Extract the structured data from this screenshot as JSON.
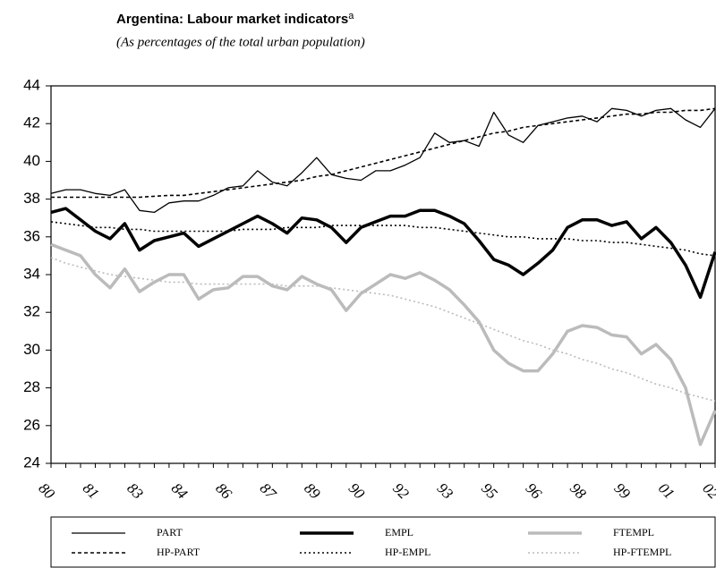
{
  "chart_data": {
    "type": "line",
    "title": "Argentina: Labour market indicators",
    "title_note": "a",
    "subtitle": "(As percentages of the total urban population)",
    "categories": [
      "80",
      null,
      null,
      "81",
      null,
      null,
      "83",
      null,
      null,
      "84",
      null,
      null,
      "86",
      null,
      null,
      "87",
      null,
      null,
      "89",
      null,
      null,
      "90",
      null,
      null,
      "92",
      null,
      null,
      "93",
      null,
      null,
      "95",
      null,
      null,
      "96",
      null,
      null,
      "98",
      null,
      null,
      "99",
      null,
      null,
      "01",
      null,
      null,
      "02"
    ],
    "ylim": [
      24,
      44
    ],
    "yticks": [
      24,
      26,
      28,
      30,
      32,
      34,
      36,
      38,
      40,
      42,
      44
    ],
    "series": [
      {
        "name": "PART",
        "color": "#000000",
        "width": 1.3,
        "dash": "solid",
        "values": [
          38.3,
          38.5,
          38.5,
          38.3,
          38.2,
          38.5,
          37.4,
          37.3,
          37.8,
          37.9,
          37.9,
          38.2,
          38.6,
          38.7,
          39.5,
          38.9,
          38.7,
          39.4,
          40.2,
          39.3,
          39.1,
          39.0,
          39.5,
          39.5,
          39.8,
          40.2,
          41.5,
          41.0,
          41.1,
          40.8,
          42.6,
          41.4,
          41.0,
          41.9,
          42.1,
          42.3,
          42.4,
          42.1,
          42.8,
          42.7,
          42.4,
          42.7,
          42.8,
          42.2,
          41.8,
          42.8
        ]
      },
      {
        "name": "EMPL",
        "color": "#000000",
        "width": 3.5,
        "dash": "solid",
        "values": [
          37.3,
          37.5,
          36.9,
          36.3,
          35.9,
          36.7,
          35.3,
          35.8,
          36.0,
          36.2,
          35.5,
          35.9,
          36.3,
          36.7,
          37.1,
          36.7,
          36.2,
          37.0,
          36.9,
          36.5,
          35.7,
          36.5,
          36.8,
          37.1,
          37.1,
          37.4,
          37.4,
          37.1,
          36.7,
          35.8,
          34.8,
          34.5,
          34.0,
          34.6,
          35.3,
          36.5,
          36.9,
          36.9,
          36.6,
          36.8,
          35.9,
          36.5,
          35.7,
          34.5,
          32.8,
          35.2
        ]
      },
      {
        "name": "FTEMPL",
        "color": "#bbbbbb",
        "width": 3.5,
        "dash": "solid",
        "values": [
          35.6,
          35.3,
          35.0,
          34.0,
          33.3,
          34.3,
          33.1,
          33.6,
          34.0,
          34.0,
          32.7,
          33.2,
          33.3,
          33.9,
          33.9,
          33.4,
          33.2,
          33.9,
          33.5,
          33.2,
          32.1,
          33.0,
          33.5,
          34.0,
          33.8,
          34.1,
          33.7,
          33.2,
          32.4,
          31.5,
          30.0,
          29.3,
          28.9,
          28.9,
          29.8,
          31.0,
          31.3,
          31.2,
          30.8,
          30.7,
          29.8,
          30.3,
          29.5,
          28.0,
          25.0,
          26.8
        ]
      },
      {
        "name": "HP-PART",
        "color": "#000000",
        "width": 1.6,
        "dash": "dashed",
        "values": [
          38.1,
          38.1,
          38.1,
          38.1,
          38.1,
          38.1,
          38.1,
          38.15,
          38.2,
          38.2,
          38.3,
          38.4,
          38.5,
          38.6,
          38.7,
          38.8,
          38.9,
          39.0,
          39.2,
          39.3,
          39.5,
          39.7,
          39.9,
          40.1,
          40.3,
          40.5,
          40.7,
          40.9,
          41.1,
          41.3,
          41.5,
          41.6,
          41.8,
          41.9,
          42.0,
          42.1,
          42.2,
          42.3,
          42.4,
          42.5,
          42.5,
          42.6,
          42.6,
          42.7,
          42.7,
          42.8
        ]
      },
      {
        "name": "HP-EMPL",
        "color": "#000000",
        "width": 1.6,
        "dash": "dotted",
        "values": [
          36.8,
          36.7,
          36.6,
          36.5,
          36.5,
          36.4,
          36.4,
          36.3,
          36.3,
          36.3,
          36.3,
          36.3,
          36.3,
          36.4,
          36.4,
          36.4,
          36.5,
          36.5,
          36.5,
          36.6,
          36.6,
          36.6,
          36.6,
          36.6,
          36.6,
          36.5,
          36.5,
          36.4,
          36.3,
          36.2,
          36.1,
          36.0,
          36.0,
          35.9,
          35.9,
          35.9,
          35.8,
          35.8,
          35.7,
          35.7,
          35.6,
          35.5,
          35.4,
          35.3,
          35.1,
          35.0
        ]
      },
      {
        "name": "HP-FTEMPL",
        "color": "#bbbbbb",
        "width": 1.6,
        "dash": "dotted",
        "values": [
          34.9,
          34.6,
          34.4,
          34.2,
          34.0,
          33.9,
          33.8,
          33.7,
          33.6,
          33.6,
          33.5,
          33.5,
          33.5,
          33.5,
          33.5,
          33.5,
          33.4,
          33.4,
          33.4,
          33.3,
          33.2,
          33.1,
          33.0,
          32.9,
          32.7,
          32.5,
          32.3,
          32.0,
          31.7,
          31.4,
          31.1,
          30.8,
          30.5,
          30.3,
          30.0,
          29.8,
          29.5,
          29.3,
          29.0,
          28.8,
          28.5,
          28.2,
          28.0,
          27.7,
          27.5,
          27.3
        ]
      }
    ]
  }
}
